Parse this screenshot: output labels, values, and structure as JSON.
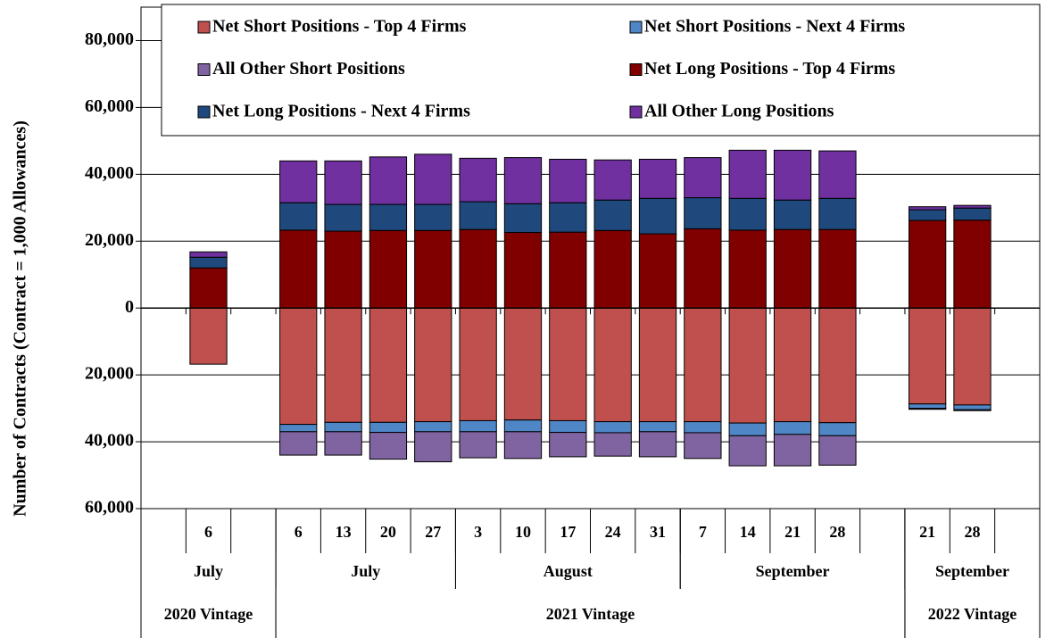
{
  "chart_data": {
    "type": "bar",
    "stacked": true,
    "y_label": "Number of Contracts (Contract = 1,000 Allowances)",
    "categories": [
      null,
      "6",
      null,
      "6",
      "13",
      "20",
      "27",
      "3",
      "10",
      "17",
      "24",
      "31",
      "7",
      "14",
      "21",
      "28",
      null,
      "21",
      "28",
      null
    ],
    "month_groups": [
      {
        "label": "July",
        "first": 0,
        "last": 2
      },
      {
        "label": "July",
        "first": 3,
        "last": 6
      },
      {
        "label": "August",
        "first": 7,
        "last": 11
      },
      {
        "label": "September",
        "first": 12,
        "last": 16
      },
      {
        "label": "September",
        "first": 17,
        "last": 19
      }
    ],
    "vintage_groups": [
      {
        "label": "2020 Vintage",
        "first": 0,
        "last": 2
      },
      {
        "label": "2021 Vintage",
        "first": 3,
        "last": 16
      },
      {
        "label": "2022 Vintage",
        "first": 17,
        "last": 19
      }
    ],
    "series": [
      {
        "name": "Net Short Positions - Top 4 Firms",
        "color": "#c0504d",
        "values": [
          null,
          -16800,
          null,
          -34800,
          -34200,
          -34200,
          -34000,
          -33700,
          -33500,
          -33700,
          -34000,
          -34000,
          -34000,
          -34400,
          -34000,
          -34300,
          null,
          -28700,
          -29000,
          null
        ]
      },
      {
        "name": "Net Short Positions - Next 4 Firms",
        "color": "#4f86c6",
        "values": [
          null,
          0,
          null,
          -2200,
          -2800,
          -3000,
          -3000,
          -3300,
          -3500,
          -3500,
          -3300,
          -3000,
          -3300,
          -3800,
          -3800,
          -3900,
          null,
          -1300,
          -1400,
          null
        ]
      },
      {
        "name": "All Other Short Positions",
        "color": "#8064a2",
        "values": [
          null,
          0,
          null,
          -7000,
          -7000,
          -8000,
          -9000,
          -7800,
          -8000,
          -7300,
          -7000,
          -7500,
          -7700,
          -9000,
          -9400,
          -8800,
          null,
          -300,
          -300,
          null
        ]
      },
      {
        "name": "Net Long Positions - Top 4 Firms",
        "color": "#800000",
        "values": [
          null,
          12000,
          null,
          23300,
          23000,
          23200,
          23200,
          23500,
          22600,
          22700,
          23200,
          22200,
          23700,
          23300,
          23500,
          23500,
          null,
          26200,
          26300,
          null
        ]
      },
      {
        "name": "Net Long Positions - Next 4 Firms",
        "color": "#1f497d",
        "values": [
          null,
          3200,
          null,
          8200,
          8000,
          7800,
          7800,
          8300,
          8600,
          8800,
          9100,
          10600,
          9300,
          9500,
          8800,
          9300,
          null,
          3200,
          3600,
          null
        ]
      },
      {
        "name": "All Other Long Positions",
        "color": "#7030a0",
        "values": [
          null,
          1600,
          null,
          12500,
          13000,
          14200,
          15000,
          13000,
          13800,
          13000,
          12000,
          11700,
          12000,
          14400,
          14900,
          14200,
          null,
          900,
          800,
          null
        ]
      }
    ],
    "ylim": [
      -60000,
      90000
    ],
    "yticks": [
      {
        "value": -60000,
        "label": "60,000"
      },
      {
        "value": -40000,
        "label": "40,000"
      },
      {
        "value": -20000,
        "label": "20,000"
      },
      0,
      {
        "value": 20000,
        "label": "20,000"
      },
      {
        "value": 40000,
        "label": "40,000"
      },
      {
        "value": 60000,
        "label": "60,000"
      },
      {
        "value": 80000,
        "label": "80,000"
      }
    ],
    "grid": true,
    "legend": "top"
  }
}
